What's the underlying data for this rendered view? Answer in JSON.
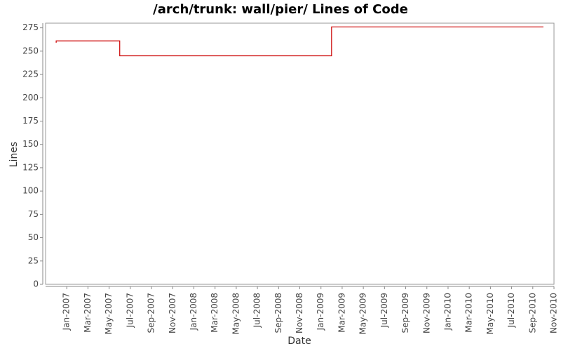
{
  "chart_data": {
    "type": "line",
    "step": true,
    "title": "/arch/trunk: wall/pier/ Lines of Code",
    "x_label": "Date",
    "y_label": "Lines",
    "x": [
      "2006-12",
      "2006-12",
      "2007-06",
      "2009-02",
      "2010-10"
    ],
    "values": [
      259,
      261,
      245,
      276,
      276
    ],
    "color": "#cc0000",
    "xlim": [
      "2006-11",
      "2010-11"
    ],
    "xticks": [
      {
        "value": "2007-01",
        "label": "Jan-2007"
      },
      {
        "value": "2007-03",
        "label": "Mar-2007"
      },
      {
        "value": "2007-05",
        "label": "May-2007"
      },
      {
        "value": "2007-07",
        "label": "Jul-2007"
      },
      {
        "value": "2007-09",
        "label": "Sep-2007"
      },
      {
        "value": "2007-11",
        "label": "Nov-2007"
      },
      {
        "value": "2008-01",
        "label": "Jan-2008"
      },
      {
        "value": "2008-03",
        "label": "Mar-2008"
      },
      {
        "value": "2008-05",
        "label": "May-2008"
      },
      {
        "value": "2008-07",
        "label": "Jul-2008"
      },
      {
        "value": "2008-09",
        "label": "Sep-2008"
      },
      {
        "value": "2008-11",
        "label": "Nov-2008"
      },
      {
        "value": "2009-01",
        "label": "Jan-2009"
      },
      {
        "value": "2009-03",
        "label": "Mar-2009"
      },
      {
        "value": "2009-05",
        "label": "May-2009"
      },
      {
        "value": "2009-07",
        "label": "Jul-2009"
      },
      {
        "value": "2009-09",
        "label": "Sep-2009"
      },
      {
        "value": "2009-11",
        "label": "Nov-2009"
      },
      {
        "value": "2010-01",
        "label": "Jan-2010"
      },
      {
        "value": "2010-03",
        "label": "Mar-2010"
      },
      {
        "value": "2010-05",
        "label": "May-2010"
      },
      {
        "value": "2010-07",
        "label": "Jul-2010"
      },
      {
        "value": "2010-09",
        "label": "Sep-2010"
      },
      {
        "value": "2010-11",
        "label": "Nov-2010"
      }
    ],
    "ylim": [
      0,
      280
    ],
    "yticks": [
      0,
      25,
      50,
      75,
      100,
      125,
      150,
      175,
      200,
      225,
      250,
      275
    ],
    "grid": false
  }
}
